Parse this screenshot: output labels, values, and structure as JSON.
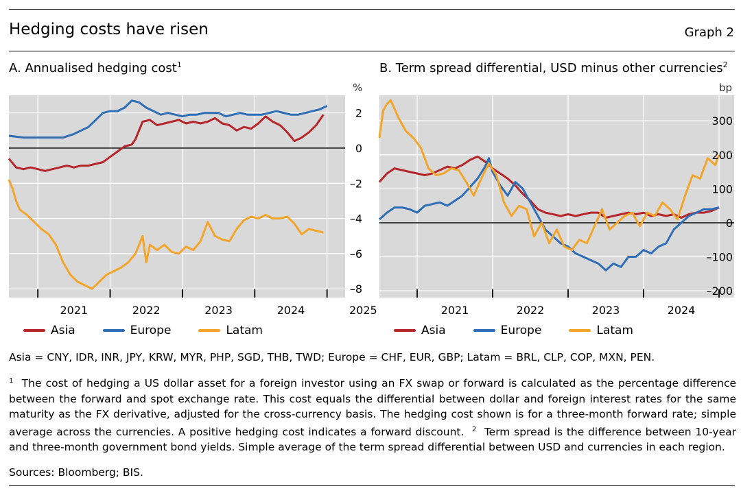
{
  "header": {
    "title": "Hedging costs have risen",
    "graph_label": "Graph 2"
  },
  "chart_data": [
    {
      "type": "line",
      "panel_title": "A. Annualised hedging cost",
      "title_footnote": "1",
      "ylabel": "%",
      "ylim": [
        -8.5,
        3
      ],
      "yticks": [
        2,
        0,
        -2,
        -4,
        -6,
        -8
      ],
      "ytick_labels": [
        "2",
        "0",
        "–2",
        "–4",
        "–6",
        "–8"
      ],
      "xlim": [
        2020.6,
        2025.25
      ],
      "xtick_labels": [
        "2021",
        "2022",
        "2023",
        "2024",
        "2025"
      ],
      "grid": true,
      "zero_line": true,
      "legend_position": "bottom",
      "series": [
        {
          "name": "Asia",
          "color": "#b5262b",
          "x": [
            2020.6,
            2020.7,
            2020.8,
            2020.9,
            2021.0,
            2021.1,
            2021.2,
            2021.3,
            2021.4,
            2021.5,
            2021.6,
            2021.7,
            2021.8,
            2021.9,
            2022.0,
            2022.1,
            2022.2,
            2022.3,
            2022.35,
            2022.45,
            2022.55,
            2022.65,
            2022.75,
            2022.85,
            2022.95,
            2023.05,
            2023.15,
            2023.25,
            2023.35,
            2023.45,
            2023.55,
            2023.65,
            2023.75,
            2023.85,
            2023.95,
            2024.05,
            2024.15,
            2024.25,
            2024.35,
            2024.45,
            2024.55,
            2024.65,
            2024.75,
            2024.85,
            2024.95
          ],
          "y": [
            -0.6,
            -1.1,
            -1.2,
            -1.1,
            -1.2,
            -1.3,
            -1.2,
            -1.1,
            -1.0,
            -1.1,
            -1.0,
            -1.0,
            -0.9,
            -0.8,
            -0.5,
            -0.2,
            0.1,
            0.2,
            0.5,
            1.5,
            1.6,
            1.3,
            1.4,
            1.5,
            1.6,
            1.4,
            1.5,
            1.4,
            1.5,
            1.7,
            1.4,
            1.3,
            1.0,
            1.2,
            1.1,
            1.4,
            1.8,
            1.5,
            1.3,
            0.9,
            0.4,
            0.6,
            0.9,
            1.3,
            1.9
          ]
        },
        {
          "name": "Europe",
          "color": "#2f6db5",
          "x": [
            2020.6,
            2020.8,
            2021.0,
            2021.2,
            2021.35,
            2021.5,
            2021.6,
            2021.7,
            2021.8,
            2021.9,
            2022.0,
            2022.1,
            2022.2,
            2022.3,
            2022.4,
            2022.5,
            2022.6,
            2022.7,
            2022.8,
            2022.9,
            2023.0,
            2023.1,
            2023.2,
            2023.3,
            2023.4,
            2023.5,
            2023.6,
            2023.7,
            2023.8,
            2023.9,
            2024.0,
            2024.1,
            2024.2,
            2024.3,
            2024.4,
            2024.5,
            2024.6,
            2024.7,
            2024.8,
            2024.9,
            2025.0
          ],
          "y": [
            0.7,
            0.6,
            0.6,
            0.6,
            0.6,
            0.8,
            1.0,
            1.2,
            1.6,
            2.0,
            2.1,
            2.1,
            2.3,
            2.7,
            2.6,
            2.3,
            2.1,
            1.9,
            2.0,
            1.9,
            1.8,
            1.9,
            1.9,
            2.0,
            2.0,
            2.0,
            1.8,
            1.9,
            2.0,
            1.9,
            1.9,
            1.9,
            2.0,
            2.1,
            2.0,
            1.9,
            1.9,
            2.0,
            2.1,
            2.2,
            2.4
          ]
        },
        {
          "name": "Latam",
          "color": "#f2a52a",
          "x": [
            2020.6,
            2020.65,
            2020.7,
            2020.75,
            2020.85,
            2020.95,
            2021.05,
            2021.15,
            2021.25,
            2021.35,
            2021.45,
            2021.55,
            2021.65,
            2021.75,
            2021.85,
            2021.95,
            2022.05,
            2022.15,
            2022.25,
            2022.35,
            2022.45,
            2022.5,
            2022.55,
            2022.65,
            2022.75,
            2022.85,
            2022.95,
            2023.05,
            2023.15,
            2023.25,
            2023.35,
            2023.45,
            2023.55,
            2023.65,
            2023.75,
            2023.85,
            2023.95,
            2024.05,
            2024.15,
            2024.25,
            2024.35,
            2024.45,
            2024.55,
            2024.65,
            2024.75,
            2024.85,
            2024.95
          ],
          "y": [
            -1.8,
            -2.3,
            -3.0,
            -3.5,
            -3.8,
            -4.2,
            -4.6,
            -4.9,
            -5.5,
            -6.5,
            -7.2,
            -7.6,
            -7.8,
            -8.0,
            -7.6,
            -7.2,
            -7.0,
            -6.8,
            -6.5,
            -6.0,
            -5.0,
            -6.5,
            -5.5,
            -5.8,
            -5.5,
            -5.9,
            -6.0,
            -5.6,
            -5.8,
            -5.3,
            -4.2,
            -5.0,
            -5.2,
            -5.3,
            -4.6,
            -4.1,
            -3.9,
            -4.0,
            -3.8,
            -4.0,
            -4.0,
            -3.9,
            -4.3,
            -4.9,
            -4.6,
            -4.7,
            -4.8
          ]
        }
      ]
    },
    {
      "type": "line",
      "panel_title": "B. Term spread differential, USD minus other currencies",
      "title_footnote": "2",
      "ylabel": "bp",
      "ylim": [
        -220,
        375
      ],
      "yticks": [
        300,
        200,
        100,
        0,
        -100,
        -200
      ],
      "ytick_labels": [
        "300",
        "200",
        "100",
        "0",
        "–100",
        "–200"
      ],
      "xlim": [
        2020.5,
        2025.2
      ],
      "xtick_labels": [
        "2021",
        "2022",
        "2023",
        "2024",
        "2025"
      ],
      "grid": true,
      "zero_line": true,
      "legend_position": "bottom",
      "series": [
        {
          "name": "Asia",
          "color": "#b5262b",
          "x": [
            2020.5,
            2020.6,
            2020.7,
            2020.8,
            2020.9,
            2021.0,
            2021.1,
            2021.2,
            2021.3,
            2021.4,
            2021.5,
            2021.6,
            2021.7,
            2021.8,
            2021.9,
            2022.0,
            2022.1,
            2022.2,
            2022.3,
            2022.4,
            2022.5,
            2022.6,
            2022.7,
            2022.8,
            2022.9,
            2023.0,
            2023.1,
            2023.2,
            2023.3,
            2023.4,
            2023.5,
            2023.6,
            2023.7,
            2023.8,
            2023.9,
            2024.0,
            2024.1,
            2024.2,
            2024.3,
            2024.4,
            2024.5,
            2024.6,
            2024.7,
            2024.8,
            2024.9,
            2025.0
          ],
          "y": [
            120,
            145,
            160,
            155,
            150,
            145,
            140,
            145,
            155,
            165,
            160,
            170,
            185,
            195,
            180,
            160,
            145,
            130,
            110,
            85,
            65,
            40,
            30,
            25,
            20,
            25,
            20,
            25,
            30,
            30,
            15,
            20,
            25,
            30,
            25,
            30,
            20,
            25,
            20,
            25,
            15,
            25,
            30,
            30,
            35,
            45
          ]
        },
        {
          "name": "Europe",
          "color": "#2f6db5",
          "x": [
            2020.5,
            2020.6,
            2020.7,
            2020.8,
            2020.9,
            2021.0,
            2021.1,
            2021.2,
            2021.3,
            2021.4,
            2021.5,
            2021.6,
            2021.7,
            2021.8,
            2021.9,
            2021.95,
            2022.0,
            2022.1,
            2022.2,
            2022.3,
            2022.4,
            2022.5,
            2022.6,
            2022.7,
            2022.8,
            2022.9,
            2023.0,
            2023.1,
            2023.2,
            2023.3,
            2023.4,
            2023.5,
            2023.6,
            2023.7,
            2023.8,
            2023.9,
            2024.0,
            2024.1,
            2024.2,
            2024.3,
            2024.4,
            2024.5,
            2024.6,
            2024.7,
            2024.8,
            2024.9,
            2025.0
          ],
          "y": [
            10,
            30,
            45,
            45,
            40,
            30,
            50,
            55,
            60,
            50,
            65,
            80,
            105,
            130,
            165,
            190,
            150,
            110,
            80,
            120,
            100,
            60,
            20,
            -20,
            -40,
            -60,
            -70,
            -90,
            -100,
            -110,
            -120,
            -140,
            -120,
            -130,
            -100,
            -100,
            -80,
            -90,
            -70,
            -60,
            -20,
            0,
            20,
            30,
            40,
            40,
            45
          ]
        },
        {
          "name": "Latam",
          "color": "#f2a52a",
          "x": [
            2020.5,
            2020.55,
            2020.6,
            2020.65,
            2020.75,
            2020.85,
            2020.95,
            2021.05,
            2021.15,
            2021.25,
            2021.35,
            2021.45,
            2021.55,
            2021.65,
            2021.75,
            2021.85,
            2021.95,
            2022.05,
            2022.15,
            2022.25,
            2022.35,
            2022.45,
            2022.55,
            2022.65,
            2022.75,
            2022.85,
            2022.95,
            2023.05,
            2023.15,
            2023.25,
            2023.35,
            2023.45,
            2023.55,
            2023.65,
            2023.75,
            2023.85,
            2023.95,
            2024.05,
            2024.15,
            2024.25,
            2024.35,
            2024.45,
            2024.55,
            2024.65,
            2024.75,
            2024.85,
            2024.95,
            2025.0
          ],
          "y": [
            250,
            330,
            350,
            360,
            310,
            270,
            250,
            220,
            160,
            140,
            145,
            160,
            155,
            120,
            80,
            130,
            175,
            140,
            60,
            20,
            50,
            40,
            -40,
            0,
            -60,
            -20,
            -70,
            -80,
            -50,
            -60,
            -10,
            40,
            -20,
            0,
            20,
            30,
            -10,
            30,
            20,
            60,
            40,
            10,
            80,
            140,
            130,
            190,
            170,
            200
          ]
        }
      ]
    }
  ],
  "legend": [
    "Asia",
    "Europe",
    "Latam"
  ],
  "notes": {
    "currencies": "Asia = CNY, IDR, INR, JPY, KRW, MYR, PHP, SGD, THB, TWD; Europe = CHF, EUR, GBP; Latam =  BRL, CLP, COP, MXN, PEN.",
    "footnote1_mark": "1",
    "footnote1": "The cost of hedging a US dollar asset for a foreign investor using an FX swap or forward is calculated as the percentage difference between the forward and spot exchange rate. This cost equals the differential between dollar and foreign interest rates for the same maturity as the FX derivative, adjusted for the cross-currency basis. The hedging cost shown is for a three-month forward rate; simple average across the currencies. A positive hedging cost indicates a forward discount.",
    "footnote2_mark": "2",
    "footnote2": "Term spread is the difference between 10-year and three-month government bond yields. Simple average of the term spread differential between USD and currencies in each region.",
    "sources": "Sources: Bloomberg; BIS."
  }
}
